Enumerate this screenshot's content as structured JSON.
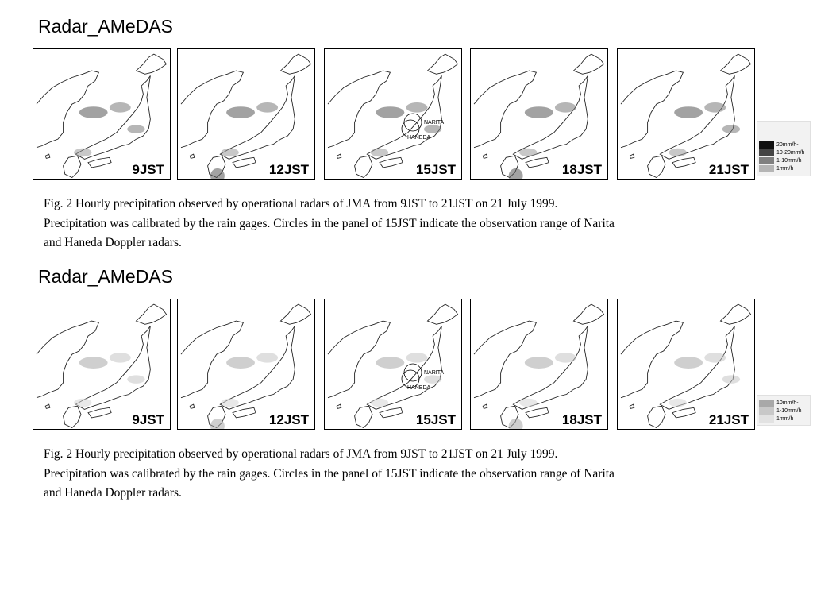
{
  "sections": [
    {
      "title": "Radar_AMeDAS",
      "panels": [
        {
          "label": "9JST"
        },
        {
          "label": "12JST"
        },
        {
          "label": "15JST",
          "radar_labels": [
            "NARITA",
            "HANEDA"
          ]
        },
        {
          "label": "18JST"
        },
        {
          "label": "21JST"
        }
      ],
      "legend": [
        {
          "label": "20mm/h-",
          "color": "#111111"
        },
        {
          "label": "10-20mm/h",
          "color": "#444444"
        },
        {
          "label": "1-10mm/h",
          "color": "#808080"
        },
        {
          "label": "1mm/h",
          "color": "#b5b5b5"
        }
      ],
      "caption": [
        "Fig. 2 Hourly precipitation observed by operational radars of JMA from 9JST to 21JST on 21 July 1999.",
        "Precipitation was calibrated by the rain gages. Circles  in the panel of 15JST indicate the observation range of Narita",
        "and Haneda Doppler radars."
      ]
    },
    {
      "title": "Radar_AMeDAS",
      "panels": [
        {
          "label": "9JST"
        },
        {
          "label": "12JST"
        },
        {
          "label": "15JST",
          "radar_labels": [
            "NARITA",
            "HANEDA"
          ]
        },
        {
          "label": "18JST"
        },
        {
          "label": "21JST"
        }
      ],
      "legend": [
        {
          "label": "10mm/h-",
          "color": "#a8a8a8"
        },
        {
          "label": "1-10mm/h",
          "color": "#c8c8c8"
        },
        {
          "label": "1mm/h",
          "color": "#e2e2e2"
        }
      ],
      "caption": [
        "Fig. 2 Hourly precipitation observed by operational radars of JMA from 9JST to 21JST on 21 July 1999.",
        "Precipitation was calibrated by the rain gages. Circles  in the panel of 15JST indicate the observation range of Narita",
        "and Haneda Doppler radars."
      ]
    }
  ]
}
